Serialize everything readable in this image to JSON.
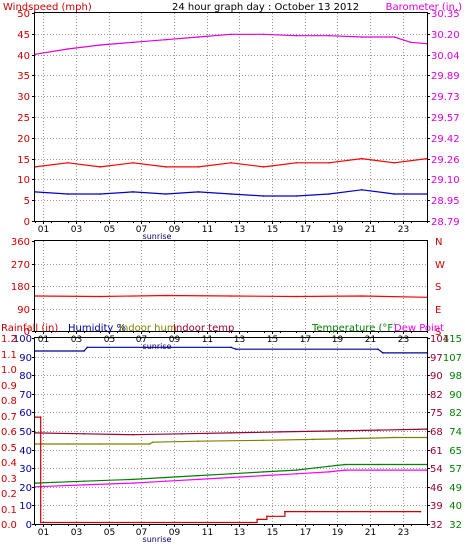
{
  "chart_data": [
    {
      "type": "line",
      "title": "24 hour graph day : October 13 2012",
      "left_axis_label": "Windspeed (mph)",
      "right_axis_label": "Barometer (in.)",
      "x_ticks": [
        "01",
        "03",
        "05",
        "07",
        "09",
        "11",
        "13",
        "15",
        "17",
        "19",
        "21",
        "23"
      ],
      "x_annotation": "sunrise",
      "x_range": [
        0,
        24
      ],
      "left_ylim": [
        0,
        50
      ],
      "left_ticks": [
        "0",
        "5",
        "10",
        "15",
        "20",
        "25",
        "30",
        "35",
        "40",
        "45",
        "50"
      ],
      "right_ylim": [
        28.79,
        30.35
      ],
      "right_ticks": [
        "28.79",
        "28.95",
        "29.10",
        "29.26",
        "29.42",
        "29.57",
        "29.73",
        "29.89",
        "30.04",
        "30.20",
        "30.35"
      ],
      "colors": {
        "wind_gust": "#ff0000",
        "wind_avg": "#0000cc",
        "barometer": "#dd00dd"
      },
      "series": [
        {
          "name": "Windspeed (mph)",
          "axis": "left",
          "color": "#ff0000",
          "x": [
            0,
            2,
            4,
            6,
            8,
            10,
            12,
            14,
            16,
            18,
            20,
            22,
            24
          ],
          "values": [
            13,
            14,
            13,
            14,
            13,
            13,
            14,
            13,
            14,
            14,
            15,
            14,
            15
          ]
        },
        {
          "axis": "left",
          "color": "#0000cc",
          "x": [
            0,
            2,
            4,
            6,
            8,
            10,
            12,
            14,
            16,
            18,
            20,
            22,
            24
          ],
          "values": [
            7,
            6.5,
            6.5,
            7,
            6.5,
            7,
            6.5,
            6,
            6,
            6.5,
            7.5,
            6.5,
            6.5
          ]
        },
        {
          "name": "Barometer (in.)",
          "axis": "right",
          "color": "#dd00dd",
          "x": [
            0,
            2,
            4,
            6,
            8,
            10,
            12,
            14,
            16,
            18,
            20,
            22,
            23,
            24
          ],
          "values": [
            30.04,
            30.08,
            30.11,
            30.13,
            30.15,
            30.17,
            30.19,
            30.19,
            30.18,
            30.18,
            30.17,
            30.17,
            30.13,
            30.12
          ]
        }
      ]
    },
    {
      "type": "line",
      "left_ylim": [
        0,
        360
      ],
      "left_ticks": [
        "0",
        "90",
        "180",
        "270",
        "360"
      ],
      "right_ticks": [
        "S",
        "E",
        "S",
        "W",
        "N"
      ],
      "x_ticks": [
        "01",
        "03",
        "05",
        "07",
        "09",
        "11",
        "13",
        "15",
        "17",
        "19",
        "21",
        "23"
      ],
      "x_annotation": "sunrise",
      "x_range": [
        0,
        24
      ],
      "series": [
        {
          "axis": "left",
          "color": "#ff0000",
          "x": [
            0,
            4,
            8,
            12,
            16,
            20,
            24
          ],
          "values": [
            140,
            138,
            142,
            140,
            138,
            140,
            135
          ]
        }
      ]
    },
    {
      "type": "line",
      "labels": {
        "rainfall": "Rainfall (in)",
        "humidity": "Humidity %",
        "indoor_hum": "Indoor hum",
        "indoor_temp": "Indoor temp",
        "temperature": "Temperature (°F)",
        "dew_point": "Dew Point"
      },
      "x_ticks": [
        "01",
        "03",
        "05",
        "07",
        "09",
        "11",
        "13",
        "15",
        "17",
        "19",
        "21",
        "23"
      ],
      "x_annotation": "sunrise",
      "x_range": [
        0,
        24
      ],
      "rain_ylim": [
        0,
        1.2
      ],
      "rain_ticks": [
        "0.0",
        "0.1",
        "0.2",
        "0.3",
        "0.4",
        "0.5",
        "0.6",
        "0.7",
        "0.8",
        "0.9",
        "1.0",
        "1.1",
        "1.2"
      ],
      "humidity_ylim": [
        0,
        100
      ],
      "humidity_ticks": [
        "0",
        "10",
        "20",
        "30",
        "40",
        "50",
        "60",
        "70",
        "80",
        "90",
        "100"
      ],
      "temp_ylim": [
        32,
        115
      ],
      "temp_ticks_a": [
        "32",
        "39",
        "46",
        "54",
        "61",
        "68",
        "75",
        "82",
        "90",
        "97",
        "104"
      ],
      "temp_ticks_b": [
        "32",
        "40",
        "49",
        "57",
        "65",
        "74",
        "82",
        "90",
        "98",
        "107",
        "115"
      ],
      "series": [
        {
          "name": "Humidity %",
          "axis": "humidity",
          "color": "#000099",
          "x": [
            0,
            3,
            3.2,
            12,
            12.3,
            21,
            21.3,
            24
          ],
          "values": [
            93,
            93,
            95,
            95,
            94,
            94,
            92,
            92
          ]
        },
        {
          "name": "Indoor temp",
          "axis": "humidity",
          "color": "#990033",
          "x": [
            0,
            3,
            6,
            9,
            12,
            15,
            18,
            21,
            24
          ],
          "values": [
            49,
            48.5,
            48,
            48.5,
            49,
            49.5,
            50,
            50.5,
            51
          ]
        },
        {
          "name": "Indoor hum",
          "axis": "humidity",
          "color": "#808000",
          "x": [
            0,
            2,
            4,
            7,
            7.2,
            10,
            14,
            17,
            20,
            22,
            24
          ],
          "values": [
            43,
            43,
            43,
            43,
            44,
            44.5,
            45,
            45.5,
            46,
            46.5,
            46.5
          ]
        },
        {
          "name": "Temperature (°F)",
          "axis": "humidity",
          "color": "#008000",
          "x": [
            0,
            3,
            6,
            8,
            10,
            12,
            14,
            16,
            18,
            19,
            21,
            24
          ],
          "values": [
            22,
            23,
            24,
            25,
            26,
            27,
            28,
            29,
            31,
            32,
            32,
            32
          ]
        },
        {
          "name": "Dew Point",
          "axis": "humidity",
          "color": "#ff00ff",
          "x": [
            0,
            3,
            6,
            8,
            10,
            12,
            14,
            16,
            18,
            19,
            21,
            24
          ],
          "values": [
            20,
            21,
            22,
            23,
            24,
            25,
            26,
            27,
            28,
            29,
            29,
            29
          ]
        },
        {
          "name": "Rainfall (in)",
          "axis": "rain",
          "color": "#cc0000",
          "step": true,
          "x": [
            0,
            0.35,
            0.35,
            13.2,
            13.6,
            14.2,
            15.3,
            23.6
          ],
          "values": [
            0.69,
            0.69,
            0.01,
            0.01,
            0.03,
            0.05,
            0.08,
            0.08
          ]
        }
      ]
    }
  ]
}
